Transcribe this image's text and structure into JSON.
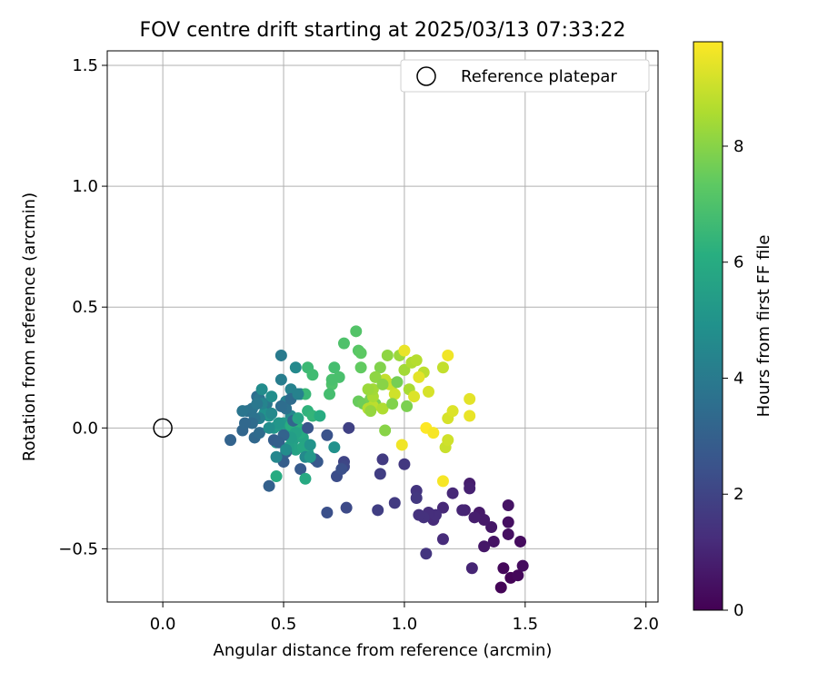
{
  "chart_data": {
    "type": "scatter",
    "title": "FOV centre drift starting at 2025/03/13 07:33:22",
    "xlabel": "Angular distance from reference (arcmin)",
    "ylabel": "Rotation from reference (arcmin)",
    "xlim": [
      -0.23,
      2.05
    ],
    "ylim": [
      -0.72,
      1.56
    ],
    "grid": true,
    "legend_position": "top-right",
    "x_ticks": [
      0.0,
      0.5,
      1.0,
      1.5,
      2.0
    ],
    "x_tick_labels": [
      "0.0",
      "0.5",
      "1.0",
      "1.5",
      "2.0"
    ],
    "y_ticks": [
      -0.5,
      0.0,
      0.5,
      1.0,
      1.5
    ],
    "y_tick_labels": [
      "−0.5",
      "0.0",
      "0.5",
      "1.0",
      "1.5"
    ],
    "colorbar": {
      "label": "Hours from first FF file",
      "colormap": "viridis",
      "range": [
        0,
        9.8
      ],
      "ticks": [
        0,
        2,
        4,
        6,
        8
      ],
      "tick_labels": [
        "0",
        "2",
        "4",
        "6",
        "8"
      ]
    },
    "reference": {
      "name": "Reference platepar",
      "x": 0.0,
      "y": 0.0
    },
    "points": [
      {
        "x": 1.4,
        "y": -0.66,
        "h": 0.1
      },
      {
        "x": 1.44,
        "y": -0.62,
        "h": 0.1
      },
      {
        "x": 1.41,
        "y": -0.58,
        "h": 0.2
      },
      {
        "x": 1.47,
        "y": -0.61,
        "h": 0.2
      },
      {
        "x": 1.49,
        "y": -0.57,
        "h": 0.3
      },
      {
        "x": 1.48,
        "y": -0.47,
        "h": 0.3
      },
      {
        "x": 1.43,
        "y": -0.44,
        "h": 0.4
      },
      {
        "x": 1.43,
        "y": -0.39,
        "h": 0.4
      },
      {
        "x": 1.43,
        "y": -0.32,
        "h": 0.5
      },
      {
        "x": 1.37,
        "y": -0.47,
        "h": 0.5
      },
      {
        "x": 1.36,
        "y": -0.41,
        "h": 0.6
      },
      {
        "x": 1.33,
        "y": -0.49,
        "h": 0.6
      },
      {
        "x": 1.33,
        "y": -0.38,
        "h": 0.7
      },
      {
        "x": 1.31,
        "y": -0.35,
        "h": 0.7
      },
      {
        "x": 1.29,
        "y": -0.37,
        "h": 0.8
      },
      {
        "x": 1.27,
        "y": -0.23,
        "h": 0.8
      },
      {
        "x": 1.27,
        "y": -0.25,
        "h": 0.9
      },
      {
        "x": 1.25,
        "y": -0.34,
        "h": 0.9
      },
      {
        "x": 1.24,
        "y": -0.34,
        "h": 1.0
      },
      {
        "x": 1.28,
        "y": -0.58,
        "h": 1.0
      },
      {
        "x": 1.2,
        "y": -0.27,
        "h": 1.1
      },
      {
        "x": 1.16,
        "y": -0.33,
        "h": 1.1
      },
      {
        "x": 1.16,
        "y": -0.46,
        "h": 1.2
      },
      {
        "x": 1.12,
        "y": -0.38,
        "h": 1.2
      },
      {
        "x": 1.13,
        "y": -0.36,
        "h": 1.3
      },
      {
        "x": 1.1,
        "y": -0.35,
        "h": 1.3
      },
      {
        "x": 1.08,
        "y": -0.37,
        "h": 1.4
      },
      {
        "x": 1.06,
        "y": -0.36,
        "h": 1.4
      },
      {
        "x": 1.09,
        "y": -0.52,
        "h": 1.5
      },
      {
        "x": 1.05,
        "y": -0.26,
        "h": 1.5
      },
      {
        "x": 1.05,
        "y": -0.29,
        "h": 1.6
      },
      {
        "x": 1.0,
        "y": -0.15,
        "h": 1.6
      },
      {
        "x": 0.96,
        "y": -0.31,
        "h": 1.7
      },
      {
        "x": 0.91,
        "y": -0.13,
        "h": 1.7
      },
      {
        "x": 0.9,
        "y": -0.19,
        "h": 1.8
      },
      {
        "x": 0.89,
        "y": -0.34,
        "h": 1.8
      },
      {
        "x": 0.77,
        "y": 0.0,
        "h": 1.9
      },
      {
        "x": 0.75,
        "y": -0.14,
        "h": 2.0
      },
      {
        "x": 0.75,
        "y": -0.16,
        "h": 2.1
      },
      {
        "x": 0.76,
        "y": -0.33,
        "h": 2.2
      },
      {
        "x": 0.72,
        "y": -0.2,
        "h": 2.3
      },
      {
        "x": 0.68,
        "y": -0.35,
        "h": 2.4
      },
      {
        "x": 0.68,
        "y": -0.03,
        "h": 2.5
      },
      {
        "x": 0.63,
        "y": -0.13,
        "h": 2.6
      },
      {
        "x": 0.64,
        "y": -0.14,
        "h": 2.7
      },
      {
        "x": 0.57,
        "y": -0.17,
        "h": 2.8
      },
      {
        "x": 0.5,
        "y": -0.14,
        "h": 2.9
      },
      {
        "x": 0.44,
        "y": -0.24,
        "h": 3.0
      },
      {
        "x": 0.28,
        "y": -0.05,
        "h": 3.1
      },
      {
        "x": 0.33,
        "y": -0.01,
        "h": 3.2
      },
      {
        "x": 0.38,
        "y": -0.04,
        "h": 3.3
      },
      {
        "x": 0.4,
        "y": -0.02,
        "h": 3.4
      },
      {
        "x": 0.39,
        "y": 0.13,
        "h": 3.5
      },
      {
        "x": 0.35,
        "y": 0.07,
        "h": 3.6
      },
      {
        "x": 0.37,
        "y": 0.08,
        "h": 3.7
      },
      {
        "x": 0.4,
        "y": 0.12,
        "h": 3.8
      },
      {
        "x": 0.43,
        "y": 0.1,
        "h": 3.9
      },
      {
        "x": 0.49,
        "y": 0.3,
        "h": 4.0
      },
      {
        "x": 0.49,
        "y": 0.2,
        "h": 4.1
      },
      {
        "x": 0.51,
        "y": 0.11,
        "h": 4.2
      },
      {
        "x": 0.53,
        "y": 0.16,
        "h": 4.3
      },
      {
        "x": 0.57,
        "y": 0.14,
        "h": 4.4
      },
      {
        "x": 0.53,
        "y": 0.05,
        "h": 4.5
      },
      {
        "x": 0.55,
        "y": 0.25,
        "h": 4.6
      },
      {
        "x": 0.41,
        "y": 0.16,
        "h": 4.7
      },
      {
        "x": 0.45,
        "y": 0.13,
        "h": 4.8
      },
      {
        "x": 0.42,
        "y": 0.06,
        "h": 4.9
      },
      {
        "x": 0.44,
        "y": 0.05,
        "h": 5.0
      },
      {
        "x": 0.46,
        "y": 0.0,
        "h": 5.1
      },
      {
        "x": 0.47,
        "y": -0.06,
        "h": 5.2
      },
      {
        "x": 0.5,
        "y": 0.02,
        "h": 5.3
      },
      {
        "x": 0.52,
        "y": -0.02,
        "h": 5.4
      },
      {
        "x": 0.54,
        "y": -0.05,
        "h": 5.5
      },
      {
        "x": 0.55,
        "y": -0.09,
        "h": 5.6
      },
      {
        "x": 0.58,
        "y": -0.04,
        "h": 5.7
      },
      {
        "x": 0.6,
        "y": -0.1,
        "h": 5.8
      },
      {
        "x": 0.59,
        "y": -0.21,
        "h": 5.9
      },
      {
        "x": 0.47,
        "y": -0.2,
        "h": 6.0
      },
      {
        "x": 0.53,
        "y": 0.01,
        "h": 6.1
      },
      {
        "x": 0.56,
        "y": 0.0,
        "h": 6.2
      },
      {
        "x": 0.6,
        "y": 0.07,
        "h": 6.3
      },
      {
        "x": 0.62,
        "y": 0.05,
        "h": 6.4
      },
      {
        "x": 0.59,
        "y": 0.14,
        "h": 6.5
      },
      {
        "x": 0.6,
        "y": 0.25,
        "h": 6.6
      },
      {
        "x": 0.62,
        "y": 0.22,
        "h": 6.7
      },
      {
        "x": 0.71,
        "y": 0.25,
        "h": 6.8
      },
      {
        "x": 0.73,
        "y": 0.21,
        "h": 6.9
      },
      {
        "x": 0.75,
        "y": 0.35,
        "h": 7.0
      },
      {
        "x": 0.8,
        "y": 0.4,
        "h": 7.1
      },
      {
        "x": 0.81,
        "y": 0.32,
        "h": 7.2
      },
      {
        "x": 0.82,
        "y": 0.31,
        "h": 7.3
      },
      {
        "x": 0.82,
        "y": 0.25,
        "h": 7.4
      },
      {
        "x": 0.81,
        "y": 0.11,
        "h": 7.5
      },
      {
        "x": 0.83,
        "y": 0.1,
        "h": 7.6
      },
      {
        "x": 0.86,
        "y": 0.12,
        "h": 7.7
      },
      {
        "x": 0.88,
        "y": 0.1,
        "h": 7.8
      },
      {
        "x": 0.9,
        "y": 0.25,
        "h": 7.9
      },
      {
        "x": 0.92,
        "y": -0.01,
        "h": 8.0
      },
      {
        "x": 0.93,
        "y": 0.3,
        "h": 8.1
      },
      {
        "x": 0.95,
        "y": 0.18,
        "h": 8.2
      },
      {
        "x": 0.98,
        "y": 0.3,
        "h": 8.3
      },
      {
        "x": 1.0,
        "y": 0.24,
        "h": 8.4
      },
      {
        "x": 1.02,
        "y": 0.16,
        "h": 8.5
      },
      {
        "x": 1.03,
        "y": 0.27,
        "h": 8.6
      },
      {
        "x": 1.05,
        "y": 0.28,
        "h": 8.7
      },
      {
        "x": 1.08,
        "y": 0.23,
        "h": 8.8
      },
      {
        "x": 1.16,
        "y": 0.25,
        "h": 8.9
      },
      {
        "x": 1.17,
        "y": -0.08,
        "h": 9.0
      },
      {
        "x": 1.18,
        "y": -0.05,
        "h": 9.1
      },
      {
        "x": 1.18,
        "y": 0.04,
        "h": 9.2
      },
      {
        "x": 1.2,
        "y": 0.07,
        "h": 9.3
      },
      {
        "x": 1.27,
        "y": 0.12,
        "h": 9.4
      },
      {
        "x": 1.27,
        "y": 0.05,
        "h": 9.5
      },
      {
        "x": 1.18,
        "y": 0.3,
        "h": 9.6
      },
      {
        "x": 1.16,
        "y": -0.22,
        "h": 9.7
      },
      {
        "x": 1.09,
        "y": 0.0,
        "h": 9.8
      },
      {
        "x": 1.12,
        "y": -0.02,
        "h": 9.7
      },
      {
        "x": 0.99,
        "y": -0.07,
        "h": 9.6
      },
      {
        "x": 1.0,
        "y": 0.32,
        "h": 9.5
      },
      {
        "x": 1.06,
        "y": 0.21,
        "h": 9.4
      },
      {
        "x": 1.04,
        "y": 0.13,
        "h": 9.3
      },
      {
        "x": 1.1,
        "y": 0.15,
        "h": 9.2
      },
      {
        "x": 0.96,
        "y": 0.14,
        "h": 9.1
      },
      {
        "x": 0.94,
        "y": 0.18,
        "h": 9.0
      },
      {
        "x": 0.92,
        "y": 0.2,
        "h": 8.9
      },
      {
        "x": 0.87,
        "y": 0.09,
        "h": 8.8
      },
      {
        "x": 0.85,
        "y": 0.08,
        "h": 8.7
      },
      {
        "x": 0.91,
        "y": 0.08,
        "h": 8.6
      },
      {
        "x": 0.87,
        "y": 0.13,
        "h": 8.5
      },
      {
        "x": 0.87,
        "y": 0.16,
        "h": 8.4
      },
      {
        "x": 0.85,
        "y": 0.16,
        "h": 8.3
      },
      {
        "x": 0.86,
        "y": 0.07,
        "h": 8.2
      },
      {
        "x": 0.88,
        "y": 0.21,
        "h": 8.1
      },
      {
        "x": 0.91,
        "y": 0.18,
        "h": 8.0
      },
      {
        "x": 0.95,
        "y": 0.1,
        "h": 7.9
      },
      {
        "x": 1.01,
        "y": 0.09,
        "h": 7.8
      },
      {
        "x": 0.97,
        "y": 0.19,
        "h": 7.7
      },
      {
        "x": 0.7,
        "y": 0.18,
        "h": 7.0
      },
      {
        "x": 0.7,
        "y": 0.2,
        "h": 6.9
      },
      {
        "x": 0.69,
        "y": 0.14,
        "h": 6.8
      },
      {
        "x": 0.65,
        "y": 0.05,
        "h": 6.0
      },
      {
        "x": 0.57,
        "y": -0.02,
        "h": 5.9
      },
      {
        "x": 0.58,
        "y": -0.08,
        "h": 5.8
      },
      {
        "x": 0.55,
        "y": -0.02,
        "h": 5.6
      },
      {
        "x": 0.52,
        "y": -0.08,
        "h": 5.5
      },
      {
        "x": 0.53,
        "y": -0.04,
        "h": 5.4
      },
      {
        "x": 0.48,
        "y": 0.01,
        "h": 5.3
      },
      {
        "x": 0.48,
        "y": 0.02,
        "h": 5.1
      },
      {
        "x": 0.44,
        "y": 0.0,
        "h": 4.8
      },
      {
        "x": 0.45,
        "y": 0.06,
        "h": 4.6
      },
      {
        "x": 0.41,
        "y": 0.1,
        "h": 4.4
      },
      {
        "x": 0.4,
        "y": 0.04,
        "h": 4.2
      },
      {
        "x": 0.39,
        "y": 0.1,
        "h": 3.9
      },
      {
        "x": 0.38,
        "y": 0.04,
        "h": 3.7
      },
      {
        "x": 0.37,
        "y": 0.02,
        "h": 3.4
      },
      {
        "x": 0.33,
        "y": 0.07,
        "h": 3.8
      },
      {
        "x": 0.34,
        "y": 0.02,
        "h": 3.3
      },
      {
        "x": 0.51,
        "y": 0.08,
        "h": 3.6
      },
      {
        "x": 0.49,
        "y": 0.09,
        "h": 3.5
      },
      {
        "x": 0.53,
        "y": 0.12,
        "h": 3.4
      },
      {
        "x": 0.54,
        "y": 0.03,
        "h": 3.2
      },
      {
        "x": 0.5,
        "y": -0.03,
        "h": 3.1
      },
      {
        "x": 0.46,
        "y": -0.05,
        "h": 2.9
      },
      {
        "x": 0.48,
        "y": -0.06,
        "h": 3.0
      },
      {
        "x": 0.51,
        "y": -0.1,
        "h": 3.0
      },
      {
        "x": 0.47,
        "y": -0.12,
        "h": 4.5
      },
      {
        "x": 0.51,
        "y": -0.09,
        "h": 4.7
      },
      {
        "x": 0.59,
        "y": -0.12,
        "h": 4.6
      },
      {
        "x": 0.61,
        "y": -0.07,
        "h": 5.0
      },
      {
        "x": 0.61,
        "y": -0.12,
        "h": 5.2
      },
      {
        "x": 0.6,
        "y": 0.0,
        "h": 2.6
      },
      {
        "x": 0.71,
        "y": -0.08,
        "h": 4.9
      },
      {
        "x": 0.74,
        "y": -0.17,
        "h": 2.4
      },
      {
        "x": 0.56,
        "y": 0.14,
        "h": 4.3
      },
      {
        "x": 0.56,
        "y": 0.04,
        "h": 5.7
      }
    ]
  }
}
